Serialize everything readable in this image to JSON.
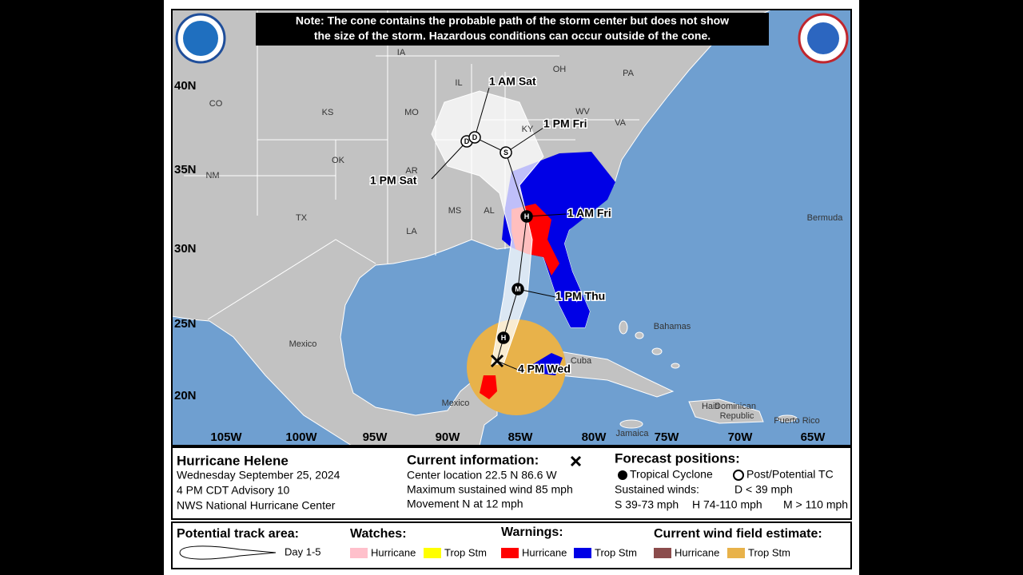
{
  "note": [
    "Note: The cone contains the probable path of the storm center but does not show",
    "the size of the storm. Hazardous conditions can occur outside of the cone."
  ],
  "map": {
    "latitudes": [
      "40N",
      "35N",
      "30N",
      "25N",
      "20N"
    ],
    "longitudes": [
      "105W",
      "100W",
      "95W",
      "90W",
      "85W",
      "80W",
      "75W",
      "70W",
      "65W"
    ],
    "states": [
      "IA",
      "IL",
      "OH",
      "PA",
      "CO",
      "KS",
      "MO",
      "WV",
      "VA",
      "KY",
      "NM",
      "OK",
      "AR",
      "TX",
      "MS",
      "AL",
      "LA"
    ],
    "places": [
      "Mexico",
      "Mexico",
      "Cuba",
      "Bahamas",
      "Bermuda",
      "Jamaica",
      "Haiti",
      "Dominican",
      "Republic",
      "Puerto Rico"
    ],
    "forecast_times": [
      "1 AM Sat",
      "1 PM Fri",
      "1 PM Sat",
      "1 AM Fri",
      "1 PM Thu",
      "4 PM Wed"
    ],
    "markers": [
      "D",
      "D",
      "S",
      "H",
      "M",
      "H"
    ]
  },
  "info": {
    "storm": "Hurricane Helene",
    "lines": [
      "Wednesday September 25, 2024",
      "4 PM CDT Advisory 10",
      "NWS National Hurricane Center"
    ]
  },
  "current": {
    "title": "Current information:",
    "lines": [
      "Center location 22.5 N 86.6 W",
      "Maximum sustained wind 85 mph",
      "Movement N at 12 mph"
    ]
  },
  "forecast": {
    "title": "Forecast positions:",
    "tropical": "Tropical Cyclone",
    "post": "Post/Potential TC",
    "winds": "Sustained winds:",
    "d": "D < 39 mph",
    "s": "S 39-73 mph",
    "h": "H 74-110 mph",
    "m": "M > 110 mph"
  },
  "legend": {
    "track": "Potential track area:",
    "day": "Day 1-5",
    "watches": "Watches:",
    "warnings": "Warnings:",
    "wind": "Current wind field estimate:",
    "items": [
      "Hurricane",
      "Trop Stm",
      "Hurricane",
      "Trop Stm",
      "Hurricane",
      "Trop Stm"
    ]
  }
}
